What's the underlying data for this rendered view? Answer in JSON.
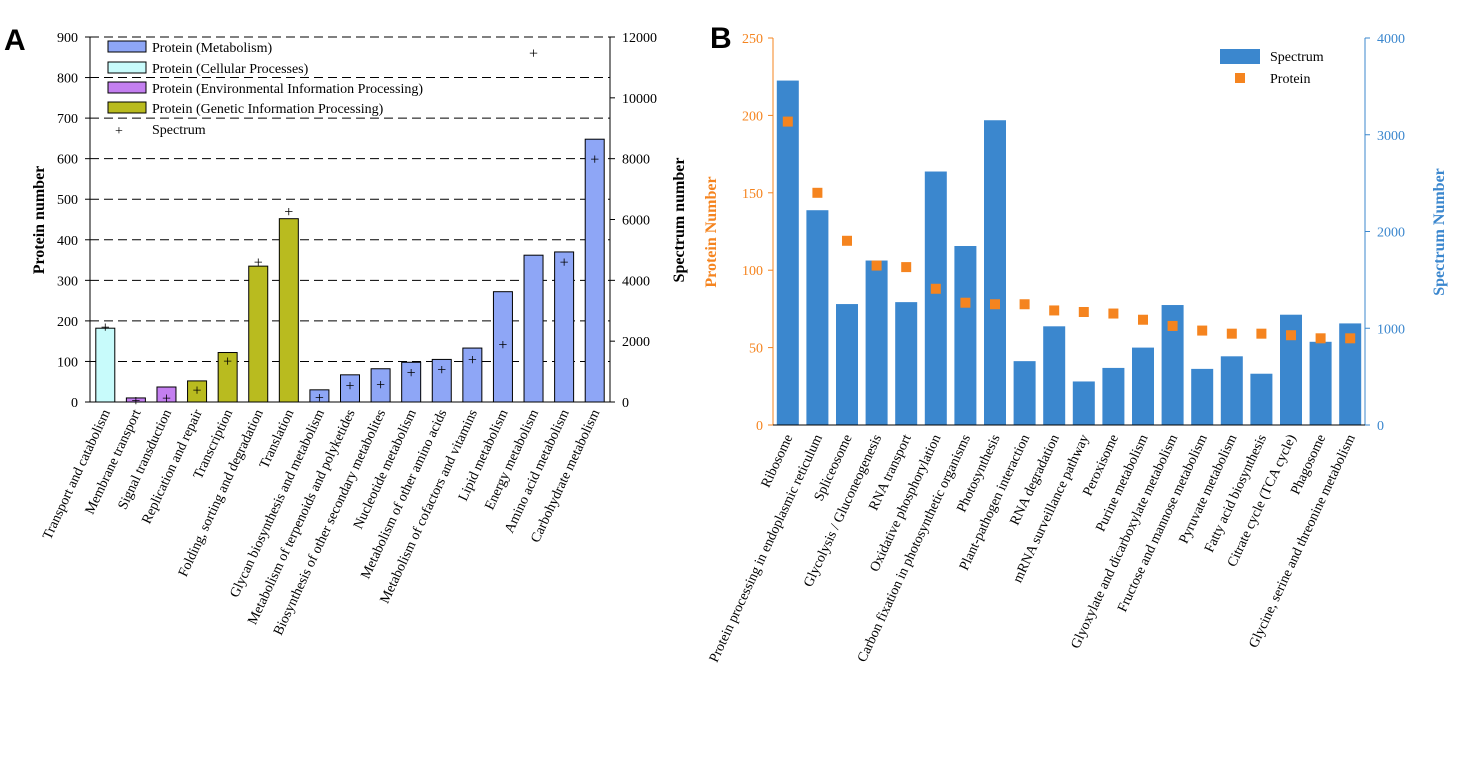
{
  "chart_data": [
    {
      "panel": "A",
      "type": "bar",
      "categories": [
        "Transport and catabolism",
        "Membrane transport",
        "Signal transduction",
        "Replication and repair",
        "Transcription",
        "Folding, sorting and degradation",
        "Translation",
        "Glycan biosynthesis and metabolism",
        "Metabolism of terpenoids and polyketides",
        "Biosynthesis of other secondary metabolites",
        "Nucleotide metabolism",
        "Metabolism of other amino acids",
        "Metabolism of cofactors and vitamins",
        "Lipid metabolism",
        "Energy metabolism",
        "Amino acid metabolism",
        "Carbohydrate metabolism"
      ],
      "bar_groups": [
        "Protein (Cellular Processes)",
        "Protein (Environmental Information Processing)",
        "Protein (Environmental Information Processing)",
        "Protein (Genetic Information Processing)",
        "Protein (Genetic Information Processing)",
        "Protein (Genetic Information Processing)",
        "Protein (Genetic Information Processing)",
        "Protein (Metabolism)",
        "Protein (Metabolism)",
        "Protein (Metabolism)",
        "Protein (Metabolism)",
        "Protein (Metabolism)",
        "Protein (Metabolism)",
        "Protein (Metabolism)",
        "Protein (Metabolism)",
        "Protein (Metabolism)",
        "Protein (Metabolism)"
      ],
      "protein_values": [
        182,
        10,
        37,
        52,
        122,
        335,
        452,
        30,
        67,
        82,
        98,
        105,
        133,
        272,
        362,
        370,
        648
      ],
      "spectrum_values": [
        2450,
        40,
        120,
        380,
        1330,
        4580,
        6250,
        130,
        530,
        560,
        950,
        1050,
        1380,
        1870,
        11450,
        4580,
        7980
      ],
      "series": [
        {
          "name": "Protein (Metabolism)",
          "color": "#8ea6f6"
        },
        {
          "name": "Protein (Cellular Processes)",
          "color": "#c8fbfb"
        },
        {
          "name": "Protein (Environmental Information Processing)",
          "color": "#c47ff0"
        },
        {
          "name": "Protein (Genetic Information Processing)",
          "color": "#b9bb1f"
        },
        {
          "name": "Spectrum",
          "marker": "+"
        }
      ],
      "ylabel": "Protein number",
      "y2label": "Spectrum number",
      "ylim": [
        0,
        900
      ],
      "y2lim": [
        0,
        12000
      ],
      "yticks": [
        "0",
        "100",
        "200",
        "300",
        "400",
        "500",
        "600",
        "700",
        "800",
        "900"
      ],
      "y2ticks": [
        "0",
        "2000",
        "4000",
        "6000",
        "8000",
        "10000",
        "12000"
      ],
      "grid": "dashed horizontal",
      "legend": "top-left"
    },
    {
      "panel": "B",
      "type": "bar",
      "categories": [
        "Ribosome",
        "Protein processing in endoplasmic reticulum",
        "Spliceosome",
        "Glycolysis / Gluconeogenesis",
        "RNA transport",
        "Oxidative phosphorylation",
        "Carbon fixation in photosynthetic organisms",
        "Photosynthesis",
        "Plant-pathogen interaction",
        "RNA degradation",
        "mRNA surveillance pathway",
        "Peroxisome",
        "Purine metabolism",
        "Glyoxylate and dicarboxylate metabolism",
        "Fructose and mannose metabolism",
        "Pyruvate metabolism",
        "Fatty acid biosynthesis",
        "Citrate cycle (TCA cycle)",
        "Phagosome",
        "Glycine, serine and threonine metabolism"
      ],
      "spectrum_values": [
        3560,
        2220,
        1250,
        1700,
        1270,
        2620,
        1850,
        3150,
        660,
        1020,
        450,
        590,
        800,
        1240,
        580,
        710,
        530,
        1140,
        860,
        1050
      ],
      "protein_values": [
        196,
        150,
        119,
        103,
        102,
        88,
        79,
        78,
        78,
        74,
        73,
        72,
        68,
        64,
        61,
        59,
        59,
        58,
        56,
        56
      ],
      "series": [
        {
          "name": "Spectrum",
          "color": "#3b87ce"
        },
        {
          "name": "Protein",
          "color": "#f5841f"
        }
      ],
      "ylabel": "Protein Number",
      "y2label": "Spectrum Number",
      "ylim": [
        0,
        250
      ],
      "y2lim": [
        0,
        4000
      ],
      "yticks": [
        "0",
        "50",
        "100",
        "150",
        "200",
        "250"
      ],
      "y2ticks": [
        "0",
        "1000",
        "2000",
        "3000",
        "4000"
      ],
      "ylabel_color": "#f5841f",
      "y2label_color": "#3b87ce",
      "legend": "top-right"
    }
  ]
}
